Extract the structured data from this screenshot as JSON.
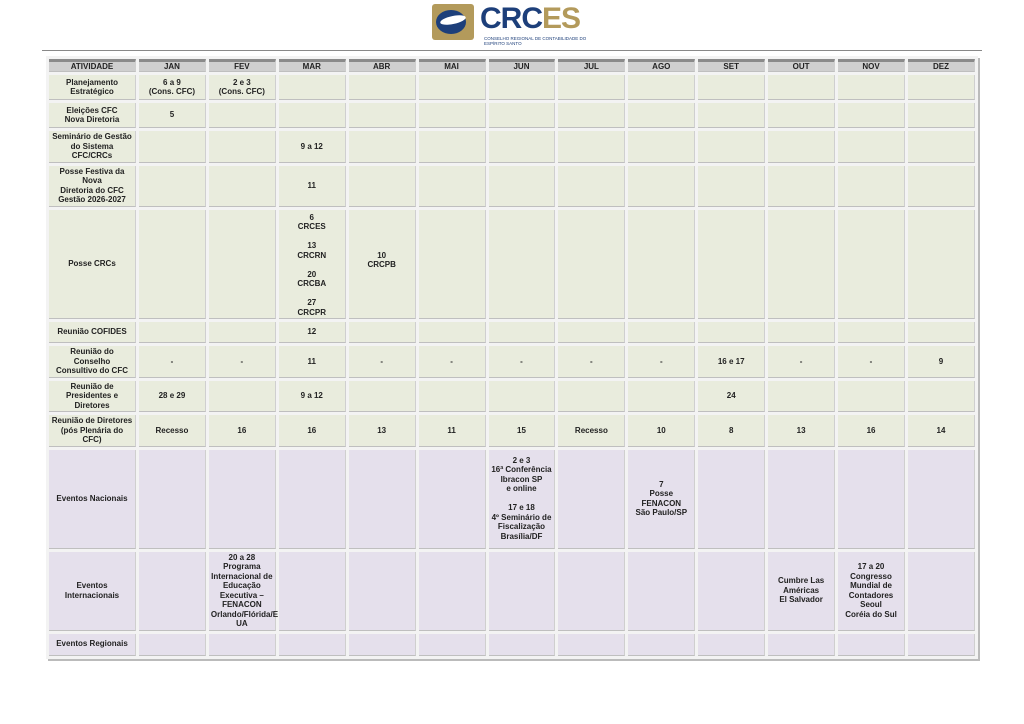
{
  "logo": {
    "name_part1": "CRC",
    "name_part2": "ES",
    "subtitle": "CONSELHO REGIONAL DE CONTABILIDADE DO ESPÍRITO SANTO"
  },
  "colors": {
    "green_cell": "#e9ecdd",
    "purple_cell": "#e5e0ec",
    "header": "#cfcfcf",
    "brand_blue": "#1d3f7a",
    "brand_gold": "#b39a5b"
  },
  "table": {
    "headers": [
      "ATIVIDADE",
      "JAN",
      "FEV",
      "MAR",
      "ABR",
      "MAI",
      "JUN",
      "JUL",
      "AGO",
      "SET",
      "OUT",
      "NOV",
      "DEZ"
    ],
    "rows": [
      {
        "activity": "Planejamento\nEstratégico",
        "tone": "g",
        "height": 25,
        "cells": [
          "6 a 9\n(Cons. CFC)",
          "2 e 3\n(Cons. CFC)",
          "",
          "",
          "",
          "",
          "",
          "",
          "",
          "",
          "",
          ""
        ]
      },
      {
        "activity": "Eleições CFC\nNova Diretoria",
        "tone": "g",
        "height": 25,
        "cells": [
          "5",
          "",
          "",
          "",
          "",
          "",
          "",
          "",
          "",
          "",
          "",
          ""
        ]
      },
      {
        "activity": "Seminário de Gestão\ndo Sistema CFC/CRCs",
        "tone": "g",
        "height": 24,
        "cells": [
          "",
          "",
          "9 a 12",
          "",
          "",
          "",
          "",
          "",
          "",
          "",
          "",
          ""
        ]
      },
      {
        "activity": "Posse Festiva da Nova\nDiretoria do CFC\nGestão 2026-2027",
        "tone": "g",
        "height": 31,
        "cells": [
          "",
          "",
          "11",
          "",
          "",
          "",
          "",
          "",
          "",
          "",
          "",
          ""
        ]
      },
      {
        "activity": "Posse CRCs",
        "tone": "g",
        "height": 108,
        "top": [
          2,
          3
        ],
        "cells": [
          "",
          "",
          "6\nCRCES\n\n13\nCRCRN\n\n20\nCRCBA\n\n27\nCRCPR",
          "\n\n\n\n10\nCRCPB",
          "",
          "",
          "",
          "",
          "",
          "",
          "",
          ""
        ]
      },
      {
        "activity": "Reunião COFIDES",
        "tone": "g",
        "height": 21,
        "cells": [
          "",
          "",
          "12",
          "",
          "",
          "",
          "",
          "",
          "",
          "",
          "",
          ""
        ]
      },
      {
        "activity": "Reunião do Conselho\nConsultivo do CFC",
        "tone": "g",
        "height": 24,
        "cells": [
          "-",
          "-",
          "11",
          "-",
          "-",
          "-",
          "-",
          "-",
          "16 e 17",
          "-",
          "-",
          "9"
        ]
      },
      {
        "activity": "Reunião de\nPresidentes e Diretores",
        "tone": "g",
        "height": 23,
        "cells": [
          "28 e 29",
          "",
          "9 a 12",
          "",
          "",
          "",
          "",
          "",
          "24",
          "",
          "",
          ""
        ]
      },
      {
        "activity": "Reunião de Diretores\n(pós Plenária do CFC)",
        "tone": "g",
        "height": 24,
        "cells": [
          "Recesso",
          "16",
          "16",
          "13",
          "11",
          "15",
          "Recesso",
          "10",
          "8",
          "13",
          "16",
          "14"
        ]
      },
      {
        "activity": "Eventos Nacionais",
        "tone": "p",
        "height": 99,
        "top": [
          6
        ],
        "cells": [
          "",
          "",
          "",
          "",
          "",
          "2 e 3\n16ª Conferência\nIbracon SP\ne online\n\n17 e 18\n4º Seminário de\nFiscalização\nBrasília/DF",
          "",
          "7\nPosse FENACON\nSão Paulo/SP",
          "",
          "",
          "",
          ""
        ]
      },
      {
        "activity": "Eventos Internacionais",
        "tone": "p",
        "height": 73,
        "cells": [
          "",
          "20 a 28\nPrograma\nInternacional de\nEducação\nExecutiva –\nFENACON\nOrlando/Flórida/E\nUA",
          "",
          "",
          "",
          "",
          "",
          "",
          "",
          "Cumbre Las\nAméricas\nEl Salvador",
          "17 a 20\nCongresso\nMundial de\nContadores\nSeoul\nCoréia do Sul",
          ""
        ]
      },
      {
        "activity": "Eventos Regionais",
        "tone": "p",
        "height": 22,
        "cells": [
          "",
          "",
          "",
          "",
          "",
          "",
          "",
          "",
          "",
          "",
          "",
          ""
        ]
      }
    ]
  }
}
